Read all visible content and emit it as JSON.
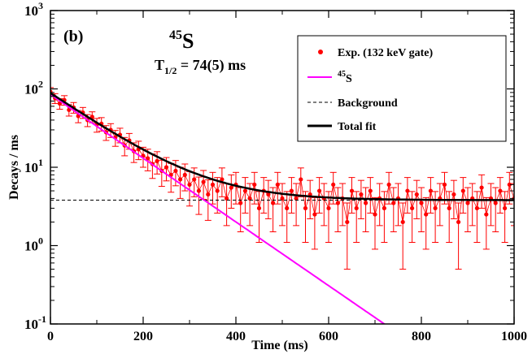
{
  "chart_data": {
    "type": "scatter",
    "panel_label": "(b)",
    "title": {
      "mass_number": "45",
      "element": "S"
    },
    "half_life": {
      "symbol": "T",
      "subscript": "1/2",
      "value": " = 74(5) ms"
    },
    "xlabel": "Time (ms)",
    "ylabel": "Decays / ms",
    "xlim": [
      0,
      1000
    ],
    "ylim": [
      0.1,
      1000
    ],
    "yscale": "log",
    "x_ticks": [
      0,
      200,
      400,
      600,
      800,
      1000
    ],
    "y_ticks": [
      {
        "base": "10",
        "exp": "-1",
        "value": 0.1
      },
      {
        "base": "10",
        "exp": "0",
        "value": 1
      },
      {
        "base": "10",
        "exp": "1",
        "value": 10
      },
      {
        "base": "10",
        "exp": "2",
        "value": 100
      },
      {
        "base": "10",
        "exp": "3",
        "value": 1000
      }
    ],
    "legend": {
      "placement": "top-right",
      "entries": [
        {
          "label": "Exp. (132 keV gate)",
          "style": "marker"
        },
        {
          "label_sup": "45",
          "label": "S",
          "style": "line"
        },
        {
          "label": "Background",
          "style": "dashed"
        },
        {
          "label": "Total fit",
          "style": "thick-line"
        }
      ]
    },
    "colors": {
      "data": "#ff0000",
      "component": "#ff00ff",
      "background": "#000000",
      "fit": "#000000"
    },
    "model": {
      "initial_decay_rate": 85,
      "half_life_ms": 74,
      "background_level": 3.8
    },
    "series": [
      {
        "name": "Exp. (132 keV gate)",
        "points": [
          {
            "x": 0,
            "y": 92,
            "err": 12
          },
          {
            "x": 10,
            "y": 76,
            "err": 11
          },
          {
            "x": 20,
            "y": 65,
            "err": 10
          },
          {
            "x": 30,
            "y": 72,
            "err": 10
          },
          {
            "x": 40,
            "y": 54,
            "err": 9
          },
          {
            "x": 50,
            "y": 58,
            "err": 9
          },
          {
            "x": 60,
            "y": 45,
            "err": 8
          },
          {
            "x": 70,
            "y": 50,
            "err": 8
          },
          {
            "x": 80,
            "y": 40,
            "err": 7
          },
          {
            "x": 90,
            "y": 44,
            "err": 7
          },
          {
            "x": 100,
            "y": 35,
            "err": 7
          },
          {
            "x": 110,
            "y": 36,
            "err": 7
          },
          {
            "x": 120,
            "y": 28,
            "err": 6
          },
          {
            "x": 130,
            "y": 30,
            "err": 6
          },
          {
            "x": 140,
            "y": 24,
            "err": 5.5
          },
          {
            "x": 150,
            "y": 26,
            "err": 5.5
          },
          {
            "x": 160,
            "y": 19,
            "err": 5
          },
          {
            "x": 170,
            "y": 22,
            "err": 5
          },
          {
            "x": 180,
            "y": 16,
            "err": 4.5
          },
          {
            "x": 190,
            "y": 17,
            "err": 4.5
          },
          {
            "x": 200,
            "y": 14,
            "err": 4
          },
          {
            "x": 210,
            "y": 13,
            "err": 4
          },
          {
            "x": 220,
            "y": 11,
            "err": 3.8
          },
          {
            "x": 230,
            "y": 12,
            "err": 3.8
          },
          {
            "x": 240,
            "y": 9,
            "err": 3.3
          },
          {
            "x": 250,
            "y": 10,
            "err": 3.3
          },
          {
            "x": 260,
            "y": 8,
            "err": 3.2
          },
          {
            "x": 270,
            "y": 9,
            "err": 3.2
          },
          {
            "x": 280,
            "y": 7,
            "err": 3
          },
          {
            "x": 290,
            "y": 8,
            "err": 3
          },
          {
            "x": 300,
            "y": 6,
            "err": 2.8
          },
          {
            "x": 310,
            "y": 7,
            "err": 2.8
          },
          {
            "x": 320,
            "y": 5,
            "err": 2.5
          },
          {
            "x": 330,
            "y": 6.5,
            "err": 2.6
          },
          {
            "x": 340,
            "y": 4.5,
            "err": 2.4
          },
          {
            "x": 350,
            "y": 6,
            "err": 2.6
          },
          {
            "x": 360,
            "y": 5,
            "err": 2.4
          },
          {
            "x": 370,
            "y": 7,
            "err": 2.8
          },
          {
            "x": 380,
            "y": 4,
            "err": 2.2
          },
          {
            "x": 390,
            "y": 5.5,
            "err": 2.5
          },
          {
            "x": 400,
            "y": 6,
            "err": 2.6
          },
          {
            "x": 410,
            "y": 3.5,
            "err": 2
          },
          {
            "x": 420,
            "y": 5,
            "err": 2.4
          },
          {
            "x": 430,
            "y": 4,
            "err": 2.2
          },
          {
            "x": 440,
            "y": 6,
            "err": 2.6
          },
          {
            "x": 450,
            "y": 3,
            "err": 1.9
          },
          {
            "x": 460,
            "y": 5,
            "err": 2.4
          },
          {
            "x": 470,
            "y": 4.5,
            "err": 2.3
          },
          {
            "x": 480,
            "y": 3.5,
            "err": 2
          },
          {
            "x": 490,
            "y": 6,
            "err": 2.6
          },
          {
            "x": 500,
            "y": 4,
            "err": 2.2
          },
          {
            "x": 510,
            "y": 3,
            "err": 1.9
          },
          {
            "x": 520,
            "y": 5,
            "err": 2.4
          },
          {
            "x": 530,
            "y": 4,
            "err": 2.2
          },
          {
            "x": 540,
            "y": 7,
            "err": 2.8
          },
          {
            "x": 550,
            "y": 3,
            "err": 1.9
          },
          {
            "x": 560,
            "y": 4.5,
            "err": 2.3
          },
          {
            "x": 570,
            "y": 2.5,
            "err": 1.6
          },
          {
            "x": 580,
            "y": 5,
            "err": 2.4
          },
          {
            "x": 590,
            "y": 4,
            "err": 2.2
          },
          {
            "x": 600,
            "y": 3,
            "err": 1.9
          },
          {
            "x": 610,
            "y": 6,
            "err": 2.6
          },
          {
            "x": 620,
            "y": 3.5,
            "err": 2
          },
          {
            "x": 630,
            "y": 4,
            "err": 2.2
          },
          {
            "x": 640,
            "y": 2,
            "err": 1.5
          },
          {
            "x": 650,
            "y": 5,
            "err": 2.4
          },
          {
            "x": 660,
            "y": 3,
            "err": 1.9
          },
          {
            "x": 670,
            "y": 4.5,
            "err": 2.3
          },
          {
            "x": 680,
            "y": 3.5,
            "err": 2
          },
          {
            "x": 690,
            "y": 5,
            "err": 2.4
          },
          {
            "x": 700,
            "y": 2.5,
            "err": 1.6
          },
          {
            "x": 710,
            "y": 4,
            "err": 2.2
          },
          {
            "x": 720,
            "y": 3,
            "err": 1.9
          },
          {
            "x": 730,
            "y": 6,
            "err": 2.6
          },
          {
            "x": 740,
            "y": 3.5,
            "err": 2
          },
          {
            "x": 750,
            "y": 4,
            "err": 2.2
          },
          {
            "x": 760,
            "y": 2,
            "err": 1.5
          },
          {
            "x": 770,
            "y": 5,
            "err": 2.4
          },
          {
            "x": 780,
            "y": 3,
            "err": 1.9
          },
          {
            "x": 790,
            "y": 4.5,
            "err": 2.3
          },
          {
            "x": 800,
            "y": 3.5,
            "err": 2
          },
          {
            "x": 810,
            "y": 2.5,
            "err": 1.6
          },
          {
            "x": 820,
            "y": 5,
            "err": 2.4
          },
          {
            "x": 830,
            "y": 3,
            "err": 1.9
          },
          {
            "x": 840,
            "y": 4,
            "err": 2.2
          },
          {
            "x": 850,
            "y": 6,
            "err": 2.6
          },
          {
            "x": 860,
            "y": 3,
            "err": 1.9
          },
          {
            "x": 870,
            "y": 4.5,
            "err": 2.3
          },
          {
            "x": 880,
            "y": 2,
            "err": 1.5
          },
          {
            "x": 890,
            "y": 5,
            "err": 2.4
          },
          {
            "x": 900,
            "y": 3.5,
            "err": 2
          },
          {
            "x": 910,
            "y": 4,
            "err": 2.2
          },
          {
            "x": 920,
            "y": 3,
            "err": 1.9
          },
          {
            "x": 930,
            "y": 5.5,
            "err": 2.5
          },
          {
            "x": 940,
            "y": 2.5,
            "err": 1.6
          },
          {
            "x": 950,
            "y": 4,
            "err": 2.2
          },
          {
            "x": 960,
            "y": 3.5,
            "err": 2
          },
          {
            "x": 970,
            "y": 5,
            "err": 2.4
          },
          {
            "x": 980,
            "y": 3,
            "err": 1.9
          },
          {
            "x": 990,
            "y": 6,
            "err": 2.6
          },
          {
            "x": 1000,
            "y": 4,
            "err": 2.2
          }
        ]
      }
    ]
  }
}
